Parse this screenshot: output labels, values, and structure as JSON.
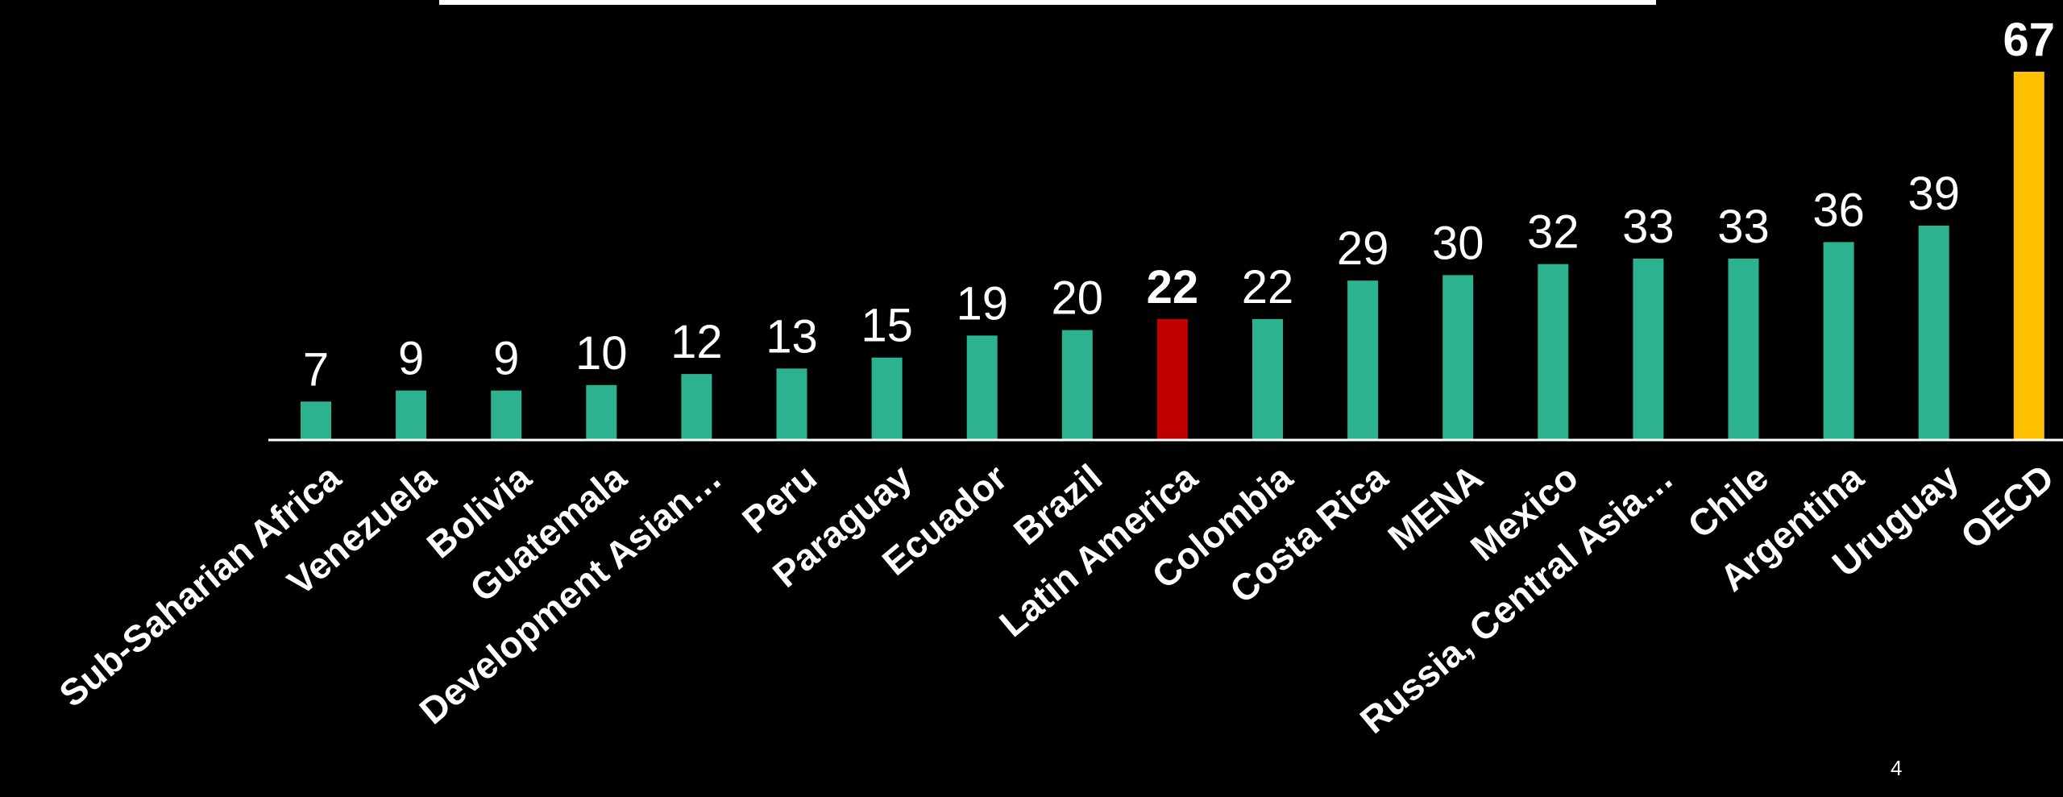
{
  "page": {
    "number": "4"
  },
  "colors": {
    "background": "#000000",
    "default_bar": "#2db28f",
    "latin_america_bar": "#c00000",
    "oecd_bar": "#ffc000",
    "text": "#ffffff",
    "baseline": "#ffffff"
  },
  "chart_data": {
    "type": "bar",
    "categories": [
      "Sub-Saharian Africa",
      "Venezuela",
      "Bolivia",
      "Guatemala",
      "Development Asian…",
      "Peru",
      "Paraguay",
      "Ecuador",
      "Brazil",
      "Latin America",
      "Colombia",
      "Costa Rica",
      "MENA",
      "Mexico",
      "Russia, Central Asia…",
      "Chile",
      "Argentina",
      "Uruguay",
      "OECD"
    ],
    "values": [
      7,
      9,
      9,
      10,
      12,
      13,
      15,
      19,
      20,
      22,
      22,
      29,
      30,
      32,
      33,
      33,
      36,
      39,
      67
    ],
    "value_labels": [
      "7",
      "9",
      "9",
      "10",
      "12",
      "13",
      "15",
      "19",
      "20",
      "22",
      "22",
      "29",
      "30",
      "32",
      "33",
      "33",
      "36",
      "39",
      "67"
    ],
    "bar_colors": [
      "#2db28f",
      "#2db28f",
      "#2db28f",
      "#2db28f",
      "#2db28f",
      "#2db28f",
      "#2db28f",
      "#2db28f",
      "#2db28f",
      "#c00000",
      "#2db28f",
      "#2db28f",
      "#2db28f",
      "#2db28f",
      "#2db28f",
      "#2db28f",
      "#2db28f",
      "#2db28f",
      "#ffc000"
    ],
    "bold_value_labels": [
      "Latin America",
      "OECD"
    ],
    "title": "",
    "xlabel": "",
    "ylabel": "",
    "ylim": [
      0,
      67
    ],
    "grid": false,
    "legend": "none"
  }
}
